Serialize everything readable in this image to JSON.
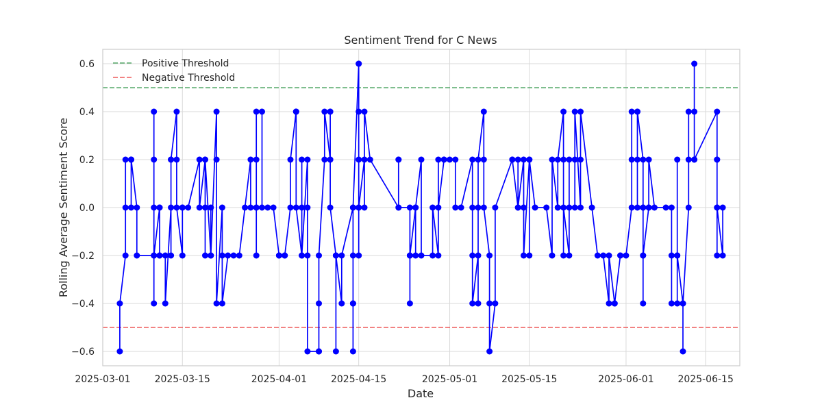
{
  "chart_data": {
    "type": "line",
    "title": "Sentiment Trend for C News",
    "xlabel": "Date",
    "ylabel": "Rolling Average Sentiment Score",
    "xlim": [
      "2025-03-01",
      "2025-06-21"
    ],
    "ylim": [
      -0.66,
      0.66
    ],
    "x_tick_labels": [
      "2025-03-01",
      "2025-03-15",
      "2025-04-01",
      "2025-04-15",
      "2025-05-01",
      "2025-05-15",
      "2025-06-01",
      "2025-06-15"
    ],
    "y_ticks": [
      -0.6,
      -0.4,
      -0.2,
      0.0,
      0.2,
      0.4,
      0.6
    ],
    "y_tick_labels": [
      "−0.6",
      "−0.4",
      "−0.2",
      "0.0",
      "0.2",
      "0.4",
      "0.6"
    ],
    "grid": true,
    "legend_position": "upper-left",
    "thresholds": [
      {
        "name": "Positive Threshold",
        "value": 0.5,
        "color": "#55a868",
        "style": "dashed"
      },
      {
        "name": "Negative Threshold",
        "value": -0.5,
        "color": "#ee5a5a",
        "style": "dashed"
      }
    ],
    "series": [
      {
        "color": "#0000ff",
        "marker": "circle",
        "points": [
          {
            "x": "2025-03-04",
            "y": -0.6
          },
          {
            "x": "2025-03-04",
            "y": -0.4
          },
          {
            "x": "2025-03-05",
            "y": -0.2
          },
          {
            "x": "2025-03-05",
            "y": 0.0
          },
          {
            "x": "2025-03-05",
            "y": 0.2
          },
          {
            "x": "2025-03-06",
            "y": 0.2
          },
          {
            "x": "2025-03-06",
            "y": 0.0
          },
          {
            "x": "2025-03-06",
            "y": 0.2
          },
          {
            "x": "2025-03-06",
            "y": 0.2
          },
          {
            "x": "2025-03-07",
            "y": 0.0
          },
          {
            "x": "2025-03-07",
            "y": -0.2
          },
          {
            "x": "2025-03-10",
            "y": -0.2
          },
          {
            "x": "2025-03-10",
            "y": -0.4
          },
          {
            "x": "2025-03-10",
            "y": 0.4
          },
          {
            "x": "2025-03-10",
            "y": 0.2
          },
          {
            "x": "2025-03-10",
            "y": 0.0
          },
          {
            "x": "2025-03-10",
            "y": -0.2
          },
          {
            "x": "2025-03-11",
            "y": 0.0
          },
          {
            "x": "2025-03-11",
            "y": -0.2
          },
          {
            "x": "2025-03-11",
            "y": 0.0
          },
          {
            "x": "2025-03-11",
            "y": -0.2
          },
          {
            "x": "2025-03-12",
            "y": -0.2
          },
          {
            "x": "2025-03-12",
            "y": -0.4
          },
          {
            "x": "2025-03-13",
            "y": 0.0
          },
          {
            "x": "2025-03-13",
            "y": 0.2
          },
          {
            "x": "2025-03-13",
            "y": -0.2
          },
          {
            "x": "2025-03-13",
            "y": 0.2
          },
          {
            "x": "2025-03-14",
            "y": 0.4
          },
          {
            "x": "2025-03-14",
            "y": 0.2
          },
          {
            "x": "2025-03-14",
            "y": 0.0
          },
          {
            "x": "2025-03-15",
            "y": -0.2
          },
          {
            "x": "2025-03-15",
            "y": 0.0
          },
          {
            "x": "2025-03-15",
            "y": 0.0
          },
          {
            "x": "2025-03-16",
            "y": 0.0
          },
          {
            "x": "2025-03-18",
            "y": 0.2
          },
          {
            "x": "2025-03-18",
            "y": 0.0
          },
          {
            "x": "2025-03-19",
            "y": 0.2
          },
          {
            "x": "2025-03-19",
            "y": 0.0
          },
          {
            "x": "2025-03-19",
            "y": -0.2
          },
          {
            "x": "2025-03-19",
            "y": 0.2
          },
          {
            "x": "2025-03-20",
            "y": -0.2
          },
          {
            "x": "2025-03-20",
            "y": 0.0
          },
          {
            "x": "2025-03-20",
            "y": -0.2
          },
          {
            "x": "2025-03-21",
            "y": 0.4
          },
          {
            "x": "2025-03-21",
            "y": 0.2
          },
          {
            "x": "2025-03-21",
            "y": -0.4
          },
          {
            "x": "2025-03-22",
            "y": 0.0
          },
          {
            "x": "2025-03-22",
            "y": -0.2
          },
          {
            "x": "2025-03-22",
            "y": -0.4
          },
          {
            "x": "2025-03-23",
            "y": -0.2
          },
          {
            "x": "2025-03-24",
            "y": -0.2
          },
          {
            "x": "2025-03-25",
            "y": -0.2
          },
          {
            "x": "2025-03-26",
            "y": 0.0
          },
          {
            "x": "2025-03-27",
            "y": 0.2
          },
          {
            "x": "2025-03-27",
            "y": 0.0
          },
          {
            "x": "2025-03-28",
            "y": 0.0
          },
          {
            "x": "2025-03-28",
            "y": -0.2
          },
          {
            "x": "2025-03-28",
            "y": 0.2
          },
          {
            "x": "2025-03-28",
            "y": 0.0
          },
          {
            "x": "2025-03-28",
            "y": 0.4
          },
          {
            "x": "2025-03-29",
            "y": 0.4
          },
          {
            "x": "2025-03-29",
            "y": 0.0
          },
          {
            "x": "2025-03-30",
            "y": 0.0
          },
          {
            "x": "2025-03-31",
            "y": 0.0
          },
          {
            "x": "2025-04-01",
            "y": -0.2
          },
          {
            "x": "2025-04-01",
            "y": -0.2
          },
          {
            "x": "2025-04-02",
            "y": -0.2
          },
          {
            "x": "2025-04-02",
            "y": -0.2
          },
          {
            "x": "2025-04-03",
            "y": 0.0
          },
          {
            "x": "2025-04-03",
            "y": 0.2
          },
          {
            "x": "2025-04-04",
            "y": 0.4
          },
          {
            "x": "2025-04-04",
            "y": 0.4
          },
          {
            "x": "2025-04-04",
            "y": 0.4
          },
          {
            "x": "2025-04-04",
            "y": 0.0
          },
          {
            "x": "2025-04-05",
            "y": -0.2
          },
          {
            "x": "2025-04-05",
            "y": 0.2
          },
          {
            "x": "2025-04-05",
            "y": 0.0
          },
          {
            "x": "2025-04-05",
            "y": -0.2
          },
          {
            "x": "2025-04-06",
            "y": 0.2
          },
          {
            "x": "2025-04-06",
            "y": 0.0
          },
          {
            "x": "2025-04-06",
            "y": -0.2
          },
          {
            "x": "2025-04-06",
            "y": -0.6
          },
          {
            "x": "2025-04-08",
            "y": -0.6
          },
          {
            "x": "2025-04-08",
            "y": -0.6
          },
          {
            "x": "2025-04-08",
            "y": -0.4
          },
          {
            "x": "2025-04-08",
            "y": -0.2
          },
          {
            "x": "2025-04-09",
            "y": 0.2
          },
          {
            "x": "2025-04-09",
            "y": 0.4
          },
          {
            "x": "2025-04-10",
            "y": 0.2
          },
          {
            "x": "2025-04-10",
            "y": 0.4
          },
          {
            "x": "2025-04-10",
            "y": 0.2
          },
          {
            "x": "2025-04-10",
            "y": 0.4
          },
          {
            "x": "2025-04-10",
            "y": 0.0
          },
          {
            "x": "2025-04-11",
            "y": -0.2
          },
          {
            "x": "2025-04-11",
            "y": -0.6
          },
          {
            "x": "2025-04-11",
            "y": -0.2
          },
          {
            "x": "2025-04-12",
            "y": -0.4
          },
          {
            "x": "2025-04-12",
            "y": -0.2
          },
          {
            "x": "2025-04-14",
            "y": 0.0
          },
          {
            "x": "2025-04-14",
            "y": -0.2
          },
          {
            "x": "2025-04-14",
            "y": -0.4
          },
          {
            "x": "2025-04-14",
            "y": -0.6
          },
          {
            "x": "2025-04-14",
            "y": -0.4
          },
          {
            "x": "2025-04-14",
            "y": 0.0
          },
          {
            "x": "2025-04-15",
            "y": 0.6
          },
          {
            "x": "2025-04-15",
            "y": 0.0
          },
          {
            "x": "2025-04-15",
            "y": 0.6
          },
          {
            "x": "2025-04-15",
            "y": 0.2
          },
          {
            "x": "2025-04-15",
            "y": 0.4
          },
          {
            "x": "2025-04-15",
            "y": -0.2
          },
          {
            "x": "2025-04-15",
            "y": 0.0
          },
          {
            "x": "2025-04-16",
            "y": 0.2
          },
          {
            "x": "2025-04-16",
            "y": 0.0
          },
          {
            "x": "2025-04-16",
            "y": 0.4
          },
          {
            "x": "2025-04-17",
            "y": 0.2
          },
          {
            "x": "2025-04-22",
            "y": 0.0
          },
          {
            "x": "2025-04-22",
            "y": 0.2
          },
          {
            "x": "2025-04-22",
            "y": 0.2
          },
          {
            "x": "2025-04-22",
            "y": 0.0
          },
          {
            "x": "2025-04-24",
            "y": 0.0
          },
          {
            "x": "2025-04-24",
            "y": -0.2
          },
          {
            "x": "2025-04-24",
            "y": -0.4
          },
          {
            "x": "2025-04-24",
            "y": -0.2
          },
          {
            "x": "2025-04-25",
            "y": 0.0
          },
          {
            "x": "2025-04-25",
            "y": -0.2
          },
          {
            "x": "2025-04-25",
            "y": 0.0
          },
          {
            "x": "2025-04-26",
            "y": 0.2
          },
          {
            "x": "2025-04-26",
            "y": -0.2
          },
          {
            "x": "2025-04-28",
            "y": -0.2
          },
          {
            "x": "2025-04-28",
            "y": 0.0
          },
          {
            "x": "2025-04-29",
            "y": -0.2
          },
          {
            "x": "2025-04-29",
            "y": 0.2
          },
          {
            "x": "2025-04-29",
            "y": 0.0
          },
          {
            "x": "2025-04-30",
            "y": 0.2
          },
          {
            "x": "2025-04-30",
            "y": 0.2
          },
          {
            "x": "2025-05-01",
            "y": 0.2
          },
          {
            "x": "2025-05-02",
            "y": 0.2
          },
          {
            "x": "2025-05-02",
            "y": 0.0
          },
          {
            "x": "2025-05-03",
            "y": 0.0
          },
          {
            "x": "2025-05-05",
            "y": 0.2
          },
          {
            "x": "2025-05-05",
            "y": 0.0
          },
          {
            "x": "2025-05-05",
            "y": -0.2
          },
          {
            "x": "2025-05-05",
            "y": -0.4
          },
          {
            "x": "2025-05-06",
            "y": -0.2
          },
          {
            "x": "2025-05-06",
            "y": -0.4
          },
          {
            "x": "2025-05-06",
            "y": 0.0
          },
          {
            "x": "2025-05-06",
            "y": 0.2
          },
          {
            "x": "2025-05-07",
            "y": 0.4
          },
          {
            "x": "2025-05-07",
            "y": 0.2
          },
          {
            "x": "2025-05-07",
            "y": 0.0
          },
          {
            "x": "2025-05-08",
            "y": -0.2
          },
          {
            "x": "2025-05-08",
            "y": -0.4
          },
          {
            "x": "2025-05-08",
            "y": -0.6
          },
          {
            "x": "2025-05-09",
            "y": -0.4
          },
          {
            "x": "2025-05-09",
            "y": 0.0
          },
          {
            "x": "2025-05-12",
            "y": 0.2
          },
          {
            "x": "2025-05-12",
            "y": 0.2
          },
          {
            "x": "2025-05-13",
            "y": 0.0
          },
          {
            "x": "2025-05-13",
            "y": 0.2
          },
          {
            "x": "2025-05-13",
            "y": 0.0
          },
          {
            "x": "2025-05-14",
            "y": 0.2
          },
          {
            "x": "2025-05-14",
            "y": 0.0
          },
          {
            "x": "2025-05-14",
            "y": -0.2
          },
          {
            "x": "2025-05-15",
            "y": 0.2
          },
          {
            "x": "2025-05-15",
            "y": -0.2
          },
          {
            "x": "2025-05-15",
            "y": 0.2
          },
          {
            "x": "2025-05-16",
            "y": 0.0
          },
          {
            "x": "2025-05-18",
            "y": 0.0
          },
          {
            "x": "2025-05-19",
            "y": -0.2
          },
          {
            "x": "2025-05-19",
            "y": 0.2
          },
          {
            "x": "2025-05-20",
            "y": 0.0
          },
          {
            "x": "2025-05-20",
            "y": 0.0
          },
          {
            "x": "2025-05-20",
            "y": 0.2
          },
          {
            "x": "2025-05-21",
            "y": 0.4
          },
          {
            "x": "2025-05-21",
            "y": -0.2
          },
          {
            "x": "2025-05-21",
            "y": 0.2
          },
          {
            "x": "2025-05-21",
            "y": 0.0
          },
          {
            "x": "2025-05-22",
            "y": -0.2
          },
          {
            "x": "2025-05-22",
            "y": 0.2
          },
          {
            "x": "2025-05-22",
            "y": 0.0
          },
          {
            "x": "2025-05-23",
            "y": 0.0
          },
          {
            "x": "2025-05-23",
            "y": 0.2
          },
          {
            "x": "2025-05-23",
            "y": 0.4
          },
          {
            "x": "2025-05-24",
            "y": 0.0
          },
          {
            "x": "2025-05-24",
            "y": 0.2
          },
          {
            "x": "2025-05-24",
            "y": 0.4
          },
          {
            "x": "2025-05-26",
            "y": 0.0
          },
          {
            "x": "2025-05-27",
            "y": -0.2
          },
          {
            "x": "2025-05-28",
            "y": -0.2
          },
          {
            "x": "2025-05-29",
            "y": -0.4
          },
          {
            "x": "2025-05-29",
            "y": -0.2
          },
          {
            "x": "2025-05-30",
            "y": -0.4
          },
          {
            "x": "2025-05-30",
            "y": -0.4
          },
          {
            "x": "2025-05-31",
            "y": -0.2
          },
          {
            "x": "2025-05-31",
            "y": -0.2
          },
          {
            "x": "2025-06-01",
            "y": -0.2
          },
          {
            "x": "2025-06-02",
            "y": 0.0
          },
          {
            "x": "2025-06-02",
            "y": 0.2
          },
          {
            "x": "2025-06-02",
            "y": 0.4
          },
          {
            "x": "2025-06-03",
            "y": 0.4
          },
          {
            "x": "2025-06-03",
            "y": 0.2
          },
          {
            "x": "2025-06-03",
            "y": 0.0
          },
          {
            "x": "2025-06-03",
            "y": 0.4
          },
          {
            "x": "2025-06-04",
            "y": 0.2
          },
          {
            "x": "2025-06-04",
            "y": 0.0
          },
          {
            "x": "2025-06-04",
            "y": -0.2
          },
          {
            "x": "2025-06-04",
            "y": 0.0
          },
          {
            "x": "2025-06-04",
            "y": -0.4
          },
          {
            "x": "2025-06-04",
            "y": -0.2
          },
          {
            "x": "2025-06-05",
            "y": 0.0
          },
          {
            "x": "2025-06-05",
            "y": 0.0
          },
          {
            "x": "2025-06-05",
            "y": 0.2
          },
          {
            "x": "2025-06-06",
            "y": 0.0
          },
          {
            "x": "2025-06-08",
            "y": 0.0
          },
          {
            "x": "2025-06-09",
            "y": 0.0
          },
          {
            "x": "2025-06-09",
            "y": -0.2
          },
          {
            "x": "2025-06-09",
            "y": -0.4
          },
          {
            "x": "2025-06-10",
            "y": -0.4
          },
          {
            "x": "2025-06-10",
            "y": -0.2
          },
          {
            "x": "2025-06-10",
            "y": 0.2
          },
          {
            "x": "2025-06-10",
            "y": -0.2
          },
          {
            "x": "2025-06-11",
            "y": -0.4
          },
          {
            "x": "2025-06-11",
            "y": -0.6
          },
          {
            "x": "2025-06-11",
            "y": -0.4
          },
          {
            "x": "2025-06-12",
            "y": 0.0
          },
          {
            "x": "2025-06-12",
            "y": 0.2
          },
          {
            "x": "2025-06-12",
            "y": 0.4
          },
          {
            "x": "2025-06-13",
            "y": 0.4
          },
          {
            "x": "2025-06-13",
            "y": 0.2
          },
          {
            "x": "2025-06-13",
            "y": 0.6
          },
          {
            "x": "2025-06-13",
            "y": 0.2
          },
          {
            "x": "2025-06-17",
            "y": 0.4
          },
          {
            "x": "2025-06-17",
            "y": 0.2
          },
          {
            "x": "2025-06-17",
            "y": 0.0
          },
          {
            "x": "2025-06-17",
            "y": -0.2
          },
          {
            "x": "2025-06-17",
            "y": 0.2
          },
          {
            "x": "2025-06-17",
            "y": 0.0
          },
          {
            "x": "2025-06-18",
            "y": -0.2
          },
          {
            "x": "2025-06-18",
            "y": 0.0
          }
        ]
      }
    ]
  }
}
